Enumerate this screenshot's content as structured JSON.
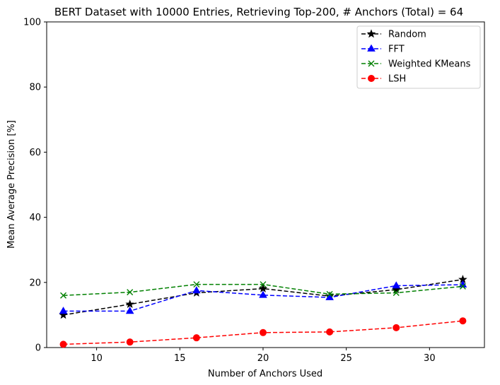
{
  "chart_data": {
    "type": "line",
    "title": "BERT Dataset with 10000 Entries, Retrieving Top-200, # Anchors (Total) = 64",
    "xlabel": "Number of Anchors Used",
    "ylabel": "Mean Average Precision [%]",
    "xlim": [
      7,
      33.3
    ],
    "ylim": [
      0,
      100
    ],
    "xticks": [
      10,
      15,
      20,
      25,
      30
    ],
    "yticks": [
      0,
      20,
      40,
      60,
      80,
      100
    ],
    "x": [
      8,
      12,
      16,
      20,
      24,
      28,
      32
    ],
    "grid": false,
    "legend_position": "top-right",
    "series": [
      {
        "name": "Random",
        "color": "#000000",
        "marker": "star",
        "values": [
          10.0,
          13.3,
          16.8,
          18.1,
          15.8,
          17.8,
          20.9
        ]
      },
      {
        "name": "FFT",
        "color": "#0000ff",
        "marker": "triangle",
        "values": [
          11.2,
          11.2,
          17.5,
          16.1,
          15.4,
          19.0,
          19.3
        ]
      },
      {
        "name": "Weighted KMeans",
        "color": "#008000",
        "marker": "x",
        "values": [
          16.0,
          17.0,
          19.4,
          19.4,
          16.4,
          16.8,
          18.8
        ]
      },
      {
        "name": "LSH",
        "color": "#ff0000",
        "marker": "circle",
        "values": [
          1.0,
          1.7,
          3.0,
          4.6,
          4.8,
          6.1,
          8.2
        ]
      }
    ]
  }
}
